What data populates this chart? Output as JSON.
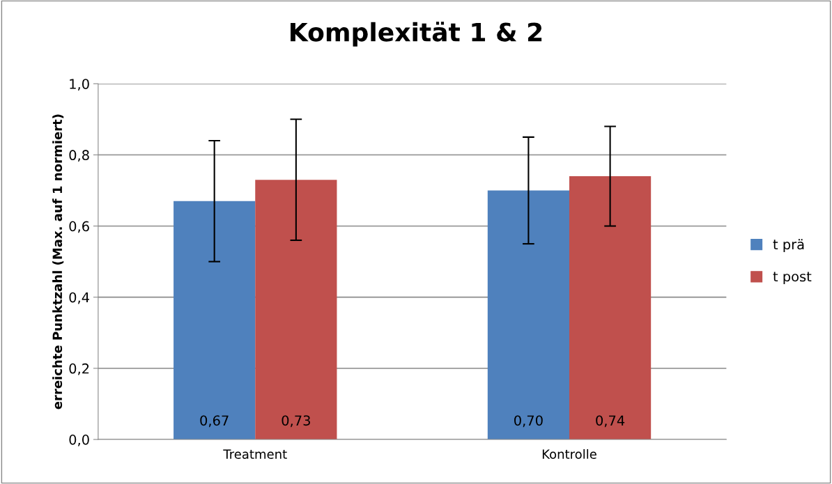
{
  "chart_data": {
    "type": "bar",
    "title": "Komplexität 1 & 2",
    "ylabel": "erreichte Punktzahl (Max. auf 1 normiert)",
    "categories": [
      "Treatment",
      "Kontrolle"
    ],
    "series": [
      {
        "name": "t prä",
        "color": "#4f81bd",
        "values": [
          0.67,
          0.7
        ],
        "errors": [
          0.17,
          0.15
        ],
        "value_labels": [
          "0,67",
          "0,70"
        ]
      },
      {
        "name": "t post",
        "color": "#c0504d",
        "values": [
          0.73,
          0.74
        ],
        "errors": [
          0.17,
          0.14
        ],
        "value_labels": [
          "0,73",
          "0,74"
        ]
      }
    ],
    "ylim": [
      0,
      1.0
    ],
    "yticks": [
      {
        "value": 0,
        "label": "0,0"
      },
      {
        "value": 0.2,
        "label": "0,2"
      },
      {
        "value": 0.4,
        "label": "0,4"
      },
      {
        "value": 0.6,
        "label": "0,6"
      },
      {
        "value": 0.8,
        "label": "0,8"
      },
      {
        "value": 1.0,
        "label": "1,0"
      }
    ],
    "grid": "y",
    "legend": "right"
  }
}
